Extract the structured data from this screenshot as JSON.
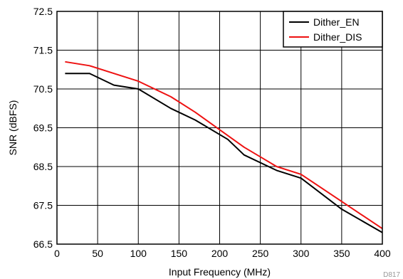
{
  "chart_data": {
    "type": "line",
    "title": "",
    "xlabel": "Input Frequency (MHz)",
    "ylabel": "SNR (dBFS)",
    "xlim": [
      0,
      400
    ],
    "ylim": [
      66.5,
      72.5
    ],
    "xticks": [
      0,
      50,
      100,
      150,
      200,
      250,
      300,
      350,
      400
    ],
    "yticks": [
      66.5,
      67.5,
      68.5,
      69.5,
      70.5,
      71.5,
      72.5
    ],
    "xtick_labels": [
      "0",
      "50",
      "100",
      "150",
      "200",
      "250",
      "300",
      "350",
      "400"
    ],
    "ytick_labels": [
      "66.5",
      "67.5",
      "68.5",
      "69.5",
      "70.5",
      "71.5",
      "72.5"
    ],
    "grid": true,
    "legend_position": "top-right",
    "series": [
      {
        "name": "Dither_EN",
        "color": "#000000",
        "x": [
          10,
          40,
          70,
          100,
          140,
          170,
          210,
          230,
          270,
          300,
          350,
          400
        ],
        "y": [
          70.9,
          70.9,
          70.6,
          70.5,
          70.0,
          69.7,
          69.2,
          68.8,
          68.4,
          68.2,
          67.4,
          66.8
        ]
      },
      {
        "name": "Dither_DIS",
        "color": "#ee1111",
        "x": [
          10,
          40,
          70,
          100,
          140,
          170,
          210,
          230,
          270,
          300,
          350,
          400
        ],
        "y": [
          71.2,
          71.1,
          70.9,
          70.7,
          70.3,
          69.9,
          69.3,
          69.0,
          68.5,
          68.3,
          67.6,
          66.9
        ]
      }
    ]
  },
  "figure_id": "D817"
}
